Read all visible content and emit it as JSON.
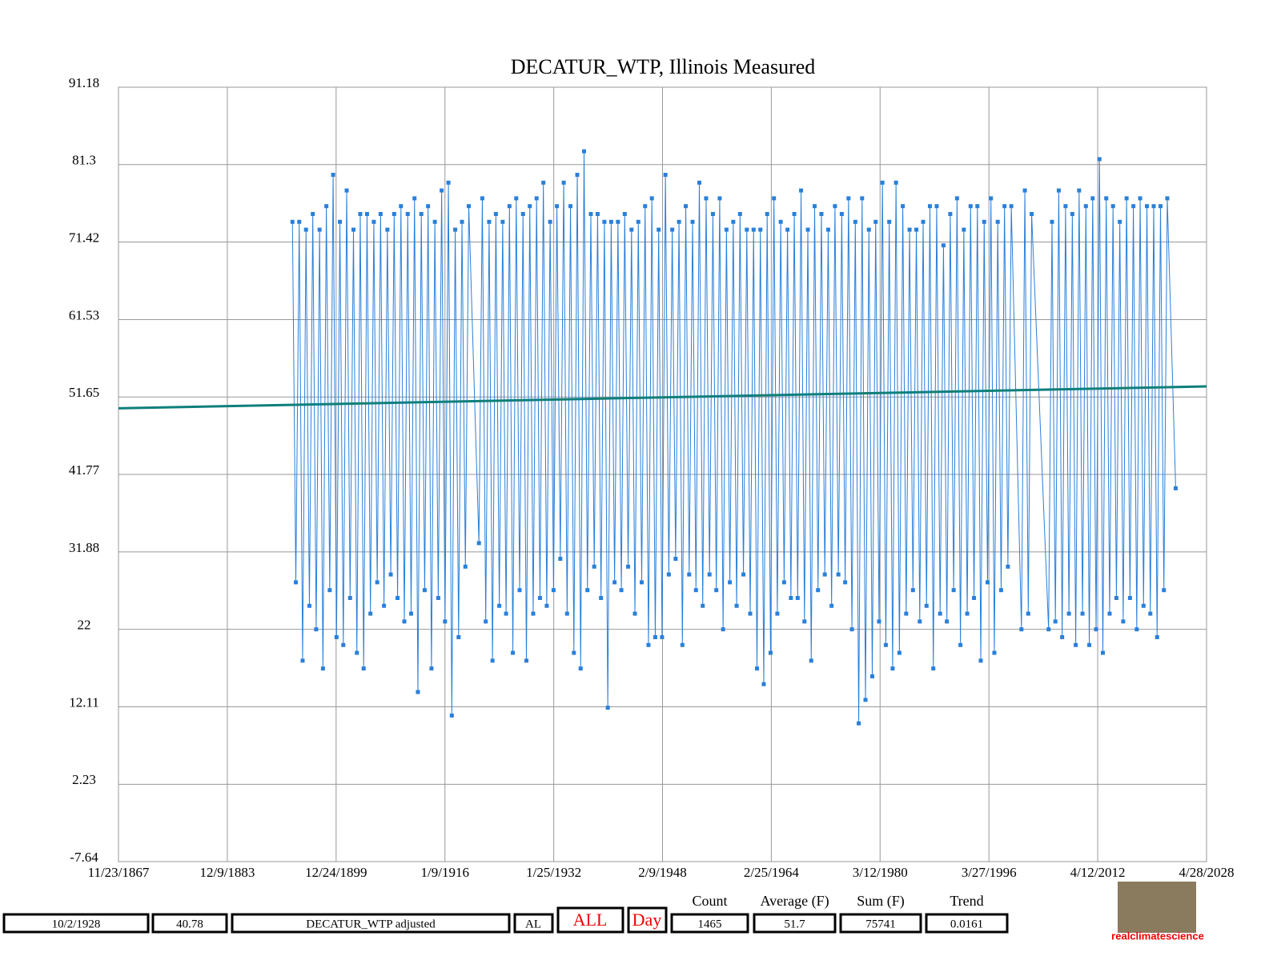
{
  "chart_data": {
    "type": "line",
    "title": "DECATUR_WTP, Illinois Measured",
    "xlim": [
      1867.89,
      2028.33
    ],
    "xticks": [
      {
        "value": 1867.89,
        "label": "11/23/1867"
      },
      {
        "value": 1883.94,
        "label": "12/9/1883"
      },
      {
        "value": 1899.98,
        "label": "12/24/1899"
      },
      {
        "value": 1916.03,
        "label": "1/9/1916"
      },
      {
        "value": 1932.07,
        "label": "1/25/1932"
      },
      {
        "value": 1948.11,
        "label": "2/9/1948"
      },
      {
        "value": 1964.15,
        "label": "2/25/1964"
      },
      {
        "value": 1980.19,
        "label": "3/12/1980"
      },
      {
        "value": 1996.24,
        "label": "3/27/1996"
      },
      {
        "value": 2012.28,
        "label": "4/12/2012"
      },
      {
        "value": 2028.33,
        "label": "4/28/2028"
      }
    ],
    "ylim": [
      -7.64,
      91.18
    ],
    "yticks": [
      91.18,
      81.3,
      71.42,
      61.53,
      51.65,
      41.77,
      31.88,
      22,
      12.11,
      2.23,
      -7.64
    ],
    "grid": true,
    "series": [
      {
        "color": "#2a7fd9",
        "x": [
          1893.54,
          1894.04,
          1894.54,
          1895.04,
          1895.54,
          1896.04,
          1896.54,
          1897.04,
          1897.54,
          1898.04,
          1898.54,
          1899.04,
          1899.54,
          1900.04,
          1900.54,
          1901.04,
          1901.54,
          1902.04,
          1902.54,
          1903.04,
          1903.54,
          1904.04,
          1904.54,
          1905.04,
          1905.54,
          1906.04,
          1906.54,
          1907.04,
          1907.54,
          1908.04,
          1908.54,
          1909.04,
          1909.54,
          1910.04,
          1910.54,
          1911.04,
          1911.54,
          1912.04,
          1912.54,
          1913.04,
          1913.54,
          1914.04,
          1914.54,
          1915.04,
          1915.54,
          1916.04,
          1916.54,
          1917.04,
          1917.54,
          1918.04,
          1918.54,
          1919.04,
          1919.54,
          1921.04,
          1921.54,
          1922.04,
          1922.54,
          1923.04,
          1923.54,
          1924.04,
          1924.54,
          1925.04,
          1925.54,
          1926.04,
          1926.54,
          1927.04,
          1927.54,
          1928.04,
          1928.54,
          1929.04,
          1929.54,
          1930.04,
          1930.54,
          1931.04,
          1931.54,
          1932.04,
          1932.54,
          1933.04,
          1933.54,
          1934.04,
          1934.54,
          1935.04,
          1935.54,
          1936.04,
          1936.54,
          1937.04,
          1937.54,
          1938.04,
          1938.54,
          1939.04,
          1939.54,
          1940.04,
          1940.54,
          1941.04,
          1941.54,
          1942.04,
          1942.54,
          1943.04,
          1943.54,
          1944.04,
          1944.54,
          1945.04,
          1945.54,
          1946.04,
          1946.54,
          1947.04,
          1947.54,
          1948.04,
          1948.54,
          1949.04,
          1949.54,
          1950.04,
          1950.54,
          1951.04,
          1951.54,
          1952.04,
          1952.54,
          1953.04,
          1953.54,
          1954.04,
          1954.54,
          1955.04,
          1955.54,
          1956.04,
          1956.54,
          1957.04,
          1957.54,
          1958.04,
          1958.54,
          1959.04,
          1959.54,
          1960.04,
          1960.54,
          1961.04,
          1961.54,
          1962.04,
          1962.54,
          1963.04,
          1963.54,
          1964.04,
          1964.54,
          1965.04,
          1965.54,
          1966.04,
          1966.54,
          1967.04,
          1967.54,
          1968.04,
          1968.54,
          1969.04,
          1969.54,
          1970.04,
          1970.54,
          1971.04,
          1971.54,
          1972.04,
          1972.54,
          1973.04,
          1973.54,
          1974.04,
          1974.54,
          1975.04,
          1975.54,
          1976.04,
          1976.54,
          1977.04,
          1977.54,
          1978.04,
          1978.54,
          1979.04,
          1979.54,
          1980.04,
          1980.54,
          1981.04,
          1981.54,
          1982.04,
          1982.54,
          1983.04,
          1983.54,
          1984.04,
          1984.54,
          1985.04,
          1985.54,
          1986.04,
          1986.54,
          1987.04,
          1987.54,
          1988.04,
          1988.54,
          1989.04,
          1989.54,
          1990.04,
          1990.54,
          1991.04,
          1991.54,
          1992.04,
          1992.54,
          1993.04,
          1993.54,
          1994.04,
          1994.54,
          1995.04,
          1995.54,
          1996.04,
          1996.54,
          1997.04,
          1997.54,
          1998.04,
          1998.54,
          1999.04,
          1999.54,
          2001.04,
          2001.54,
          2002.04,
          2002.54,
          2005.04,
          2005.54,
          2006.04,
          2006.54,
          2007.04,
          2007.54,
          2008.04,
          2008.54,
          2009.04,
          2009.54,
          2010.04,
          2010.54,
          2011.04,
          2011.54,
          2012.04,
          2012.54,
          2013.04,
          2013.54,
          2014.04,
          2014.54,
          2015.04,
          2015.54,
          2016.04,
          2016.54,
          2017.04,
          2017.54,
          2018.04,
          2018.54,
          2019.04,
          2019.54,
          2020.04,
          2020.54,
          2021.04,
          2021.54,
          2022.04,
          2022.54,
          2023.78
        ],
        "values": [
          74,
          28,
          74,
          18,
          73,
          25,
          75,
          22,
          73,
          17,
          76,
          27,
          80,
          21,
          74,
          20,
          78,
          26,
          73,
          19,
          75,
          17,
          75,
          24,
          74,
          28,
          75,
          25,
          73,
          29,
          75,
          26,
          76,
          23,
          75,
          24,
          77,
          14,
          75,
          27,
          76,
          17,
          74,
          26,
          78,
          23,
          79,
          11,
          73,
          21,
          74,
          30,
          76,
          33,
          77,
          23,
          74,
          18,
          75,
          25,
          74,
          24,
          76,
          19,
          77,
          27,
          75,
          18,
          76,
          24,
          77,
          26,
          79,
          25,
          74,
          27,
          76,
          31,
          79,
          24,
          76,
          19,
          80,
          17,
          83,
          27,
          75,
          30,
          75,
          26,
          74,
          12,
          74,
          28,
          74,
          27,
          75,
          30,
          73,
          24,
          74,
          28,
          76,
          20,
          77,
          21,
          73,
          21,
          80,
          29,
          73,
          31,
          74,
          20,
          76,
          29,
          74,
          27,
          79,
          25,
          77,
          29,
          75,
          27,
          77,
          22,
          73,
          28,
          74,
          25,
          75,
          29,
          73,
          24,
          73,
          17,
          73,
          15,
          75,
          19,
          77,
          24,
          74,
          28,
          73,
          26,
          75,
          26,
          78,
          23,
          73,
          18,
          76,
          27,
          75,
          29,
          73,
          25,
          76,
          29,
          75,
          28,
          77,
          22,
          74,
          10,
          77,
          13,
          73,
          16,
          74,
          23,
          79,
          20,
          74,
          17,
          79,
          19,
          76,
          24,
          73,
          27,
          73,
          23,
          74,
          25,
          76,
          17,
          76,
          24,
          71,
          23,
          75,
          27,
          77,
          20,
          73,
          24,
          76,
          26,
          76,
          18,
          74,
          28,
          77,
          19,
          74,
          27,
          76,
          30,
          76,
          22,
          78,
          24,
          75,
          22,
          74,
          23,
          78,
          21,
          76,
          24,
          75,
          20,
          78,
          24,
          76,
          20,
          77,
          22,
          82,
          19,
          77,
          24,
          76,
          26,
          74,
          23,
          77,
          26,
          76,
          22,
          77,
          25,
          76,
          24,
          76,
          21,
          76,
          27,
          77,
          40
        ]
      },
      {
        "color": "#0e7f7a",
        "x": [
          1867.89,
          2028.33
        ],
        "values": [
          50.2,
          53.0
        ]
      }
    ]
  },
  "controls": {
    "date": "10/2/1928",
    "value": "40.78",
    "station": "DECATUR_WTP adjusted",
    "state": "AL",
    "range": "ALL",
    "mode": "Day",
    "stats": [
      {
        "label": "Count",
        "value": "1465"
      },
      {
        "label": "Average (F)",
        "value": "51.7"
      },
      {
        "label": "Sum (F)",
        "value": "75741"
      },
      {
        "label": "Trend",
        "value": "0.0161"
      }
    ]
  },
  "logo": "realclimatescience"
}
